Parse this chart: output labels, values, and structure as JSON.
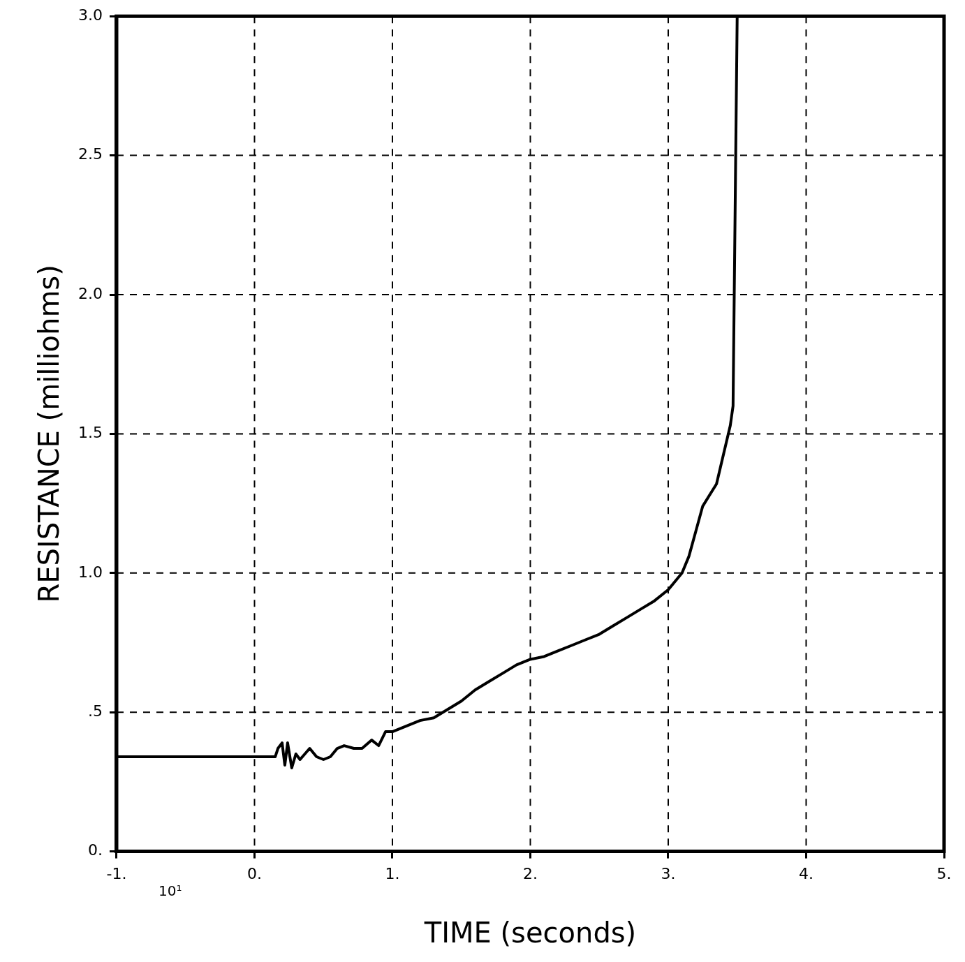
{
  "chart_data": {
    "type": "line",
    "xlabel": "TIME (seconds)",
    "ylabel": "RESISTANCE (milliohms)",
    "annotations": [
      "10¹"
    ],
    "xlim": [
      -1,
      5
    ],
    "xticks": [
      {
        "value": -1,
        "label": "-1."
      },
      {
        "value": 0,
        "label": "0."
      },
      {
        "value": 1,
        "label": "1."
      },
      {
        "value": 2,
        "label": "2."
      },
      {
        "value": 3,
        "label": "3."
      },
      {
        "value": 4,
        "label": "4."
      },
      {
        "value": 5,
        "label": "5."
      }
    ],
    "ylim": [
      0,
      3
    ],
    "yticks": [
      {
        "value": 0,
        "label": "0."
      },
      {
        "value": 0.5,
        "label": ".5"
      },
      {
        "value": 1,
        "label": "1.0"
      },
      {
        "value": 1.5,
        "label": "1.5"
      },
      {
        "value": 2,
        "label": "2.0"
      },
      {
        "value": 2.5,
        "label": "2.5"
      },
      {
        "value": 3,
        "label": "3.0"
      }
    ],
    "grid": true,
    "line_style": "solid",
    "marker": "none",
    "x": [
      -1,
      0.15,
      0.17,
      0.2,
      0.22,
      0.24,
      0.27,
      0.3,
      0.33,
      0.4,
      0.45,
      0.5,
      0.55,
      0.6,
      0.65,
      0.72,
      0.78,
      0.85,
      0.9,
      0.95,
      1.0,
      1.1,
      1.2,
      1.3,
      1.4,
      1.5,
      1.6,
      1.7,
      1.8,
      1.9,
      2.0,
      2.1,
      2.2,
      2.3,
      2.4,
      2.5,
      2.6,
      2.7,
      2.8,
      2.9,
      3.0,
      3.1,
      3.15,
      3.2,
      3.25,
      3.35,
      3.45,
      3.47,
      3.5
    ],
    "series": [
      {
        "color": "#000000",
        "values": [
          0.34,
          0.34,
          0.37,
          0.39,
          0.31,
          0.39,
          0.3,
          0.35,
          0.33,
          0.37,
          0.34,
          0.33,
          0.34,
          0.37,
          0.38,
          0.37,
          0.37,
          0.4,
          0.38,
          0.43,
          0.43,
          0.45,
          0.47,
          0.48,
          0.51,
          0.54,
          0.58,
          0.61,
          0.64,
          0.67,
          0.69,
          0.7,
          0.72,
          0.74,
          0.76,
          0.78,
          0.81,
          0.84,
          0.87,
          0.9,
          0.94,
          1.0,
          1.06,
          1.15,
          1.24,
          1.32,
          1.53,
          1.6,
          3.0
        ]
      }
    ]
  }
}
